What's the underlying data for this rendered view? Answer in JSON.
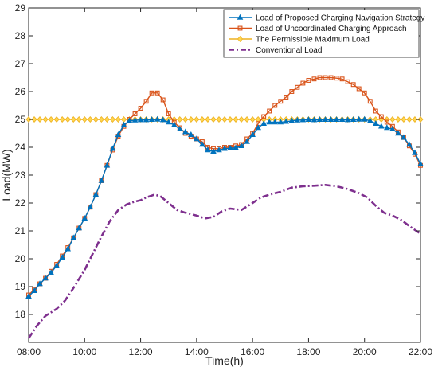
{
  "chart_data": {
    "type": "line",
    "xlabel": "Time(h)",
    "ylabel": "Load(MW)",
    "xlim": [
      8,
      22
    ],
    "ylim": [
      17,
      29
    ],
    "x_ticks": [
      {
        "value": 8,
        "label": "08:00"
      },
      {
        "value": 10,
        "label": "10:00"
      },
      {
        "value": 12,
        "label": "12:00"
      },
      {
        "value": 14,
        "label": "14:00"
      },
      {
        "value": 16,
        "label": "16:00"
      },
      {
        "value": 18,
        "label": "18:00"
      },
      {
        "value": 20,
        "label": "20:00"
      },
      {
        "value": 22,
        "label": "22:00"
      }
    ],
    "y_ticks": [
      {
        "value": 18,
        "label": "18"
      },
      {
        "value": 19,
        "label": "19"
      },
      {
        "value": 20,
        "label": "20"
      },
      {
        "value": 21,
        "label": "21"
      },
      {
        "value": 22,
        "label": "22"
      },
      {
        "value": 23,
        "label": "23"
      },
      {
        "value": 24,
        "label": "24"
      },
      {
        "value": 25,
        "label": "25"
      },
      {
        "value": 26,
        "label": "26"
      },
      {
        "value": 27,
        "label": "27"
      },
      {
        "value": 28,
        "label": "28"
      },
      {
        "value": 29,
        "label": "29"
      }
    ],
    "grid": false,
    "legend_position": "top-right",
    "series": [
      {
        "name": "Load of Proposed Charging Navigation Strategy",
        "color": "#0072BD",
        "line_style": "solid",
        "marker": "triangle",
        "points": [
          [
            8.0,
            18.65
          ],
          [
            8.2,
            18.85
          ],
          [
            8.4,
            19.1
          ],
          [
            8.6,
            19.3
          ],
          [
            8.8,
            19.5
          ],
          [
            9.0,
            19.75
          ],
          [
            9.2,
            20.05
          ],
          [
            9.4,
            20.35
          ],
          [
            9.6,
            20.75
          ],
          [
            9.8,
            21.1
          ],
          [
            10.0,
            21.45
          ],
          [
            10.2,
            21.85
          ],
          [
            10.4,
            22.3
          ],
          [
            10.6,
            22.8
          ],
          [
            10.8,
            23.35
          ],
          [
            11.0,
            23.95
          ],
          [
            11.2,
            24.45
          ],
          [
            11.4,
            24.8
          ],
          [
            11.6,
            24.95
          ],
          [
            11.8,
            24.97
          ],
          [
            12.0,
            24.98
          ],
          [
            12.2,
            24.98
          ],
          [
            12.4,
            24.99
          ],
          [
            12.6,
            25.0
          ],
          [
            12.8,
            24.98
          ],
          [
            13.0,
            24.9
          ],
          [
            13.2,
            24.8
          ],
          [
            13.4,
            24.65
          ],
          [
            13.6,
            24.55
          ],
          [
            13.8,
            24.45
          ],
          [
            14.0,
            24.3
          ],
          [
            14.2,
            24.1
          ],
          [
            14.4,
            23.9
          ],
          [
            14.6,
            23.85
          ],
          [
            14.8,
            23.9
          ],
          [
            15.0,
            23.95
          ],
          [
            15.2,
            23.97
          ],
          [
            15.4,
            23.98
          ],
          [
            15.6,
            24.05
          ],
          [
            15.8,
            24.2
          ],
          [
            16.0,
            24.45
          ],
          [
            16.2,
            24.7
          ],
          [
            16.4,
            24.85
          ],
          [
            16.6,
            24.9
          ],
          [
            16.8,
            24.9
          ],
          [
            17.0,
            24.9
          ],
          [
            17.2,
            24.92
          ],
          [
            17.4,
            24.95
          ],
          [
            17.6,
            24.97
          ],
          [
            17.8,
            24.98
          ],
          [
            18.0,
            24.99
          ],
          [
            18.2,
            24.98
          ],
          [
            18.4,
            24.99
          ],
          [
            18.6,
            24.99
          ],
          [
            18.8,
            24.99
          ],
          [
            19.0,
            24.99
          ],
          [
            19.2,
            24.99
          ],
          [
            19.4,
            24.98
          ],
          [
            19.6,
            24.99
          ],
          [
            19.8,
            25.0
          ],
          [
            20.0,
            25.0
          ],
          [
            20.2,
            24.95
          ],
          [
            20.4,
            24.85
          ],
          [
            20.6,
            24.75
          ],
          [
            20.8,
            24.7
          ],
          [
            21.0,
            24.65
          ],
          [
            21.2,
            24.5
          ],
          [
            21.4,
            24.35
          ],
          [
            21.6,
            24.1
          ],
          [
            21.8,
            23.8
          ],
          [
            22.0,
            23.4
          ]
        ]
      },
      {
        "name": "Load of Uncoordinated Charging Approach",
        "color": "#D95319",
        "line_style": "solid",
        "marker": "square",
        "points": [
          [
            8.0,
            18.7
          ],
          [
            8.2,
            18.9
          ],
          [
            8.4,
            19.1
          ],
          [
            8.6,
            19.3
          ],
          [
            8.8,
            19.55
          ],
          [
            9.0,
            19.8
          ],
          [
            9.2,
            20.1
          ],
          [
            9.4,
            20.4
          ],
          [
            9.6,
            20.75
          ],
          [
            9.8,
            21.1
          ],
          [
            10.0,
            21.45
          ],
          [
            10.2,
            21.85
          ],
          [
            10.4,
            22.3
          ],
          [
            10.6,
            22.8
          ],
          [
            10.8,
            23.35
          ],
          [
            11.0,
            23.9
          ],
          [
            11.2,
            24.4
          ],
          [
            11.4,
            24.75
          ],
          [
            11.6,
            25.0
          ],
          [
            11.8,
            25.2
          ],
          [
            12.0,
            25.4
          ],
          [
            12.2,
            25.65
          ],
          [
            12.4,
            25.95
          ],
          [
            12.6,
            25.95
          ],
          [
            12.8,
            25.7
          ],
          [
            13.0,
            25.2
          ],
          [
            13.2,
            24.9
          ],
          [
            13.4,
            24.7
          ],
          [
            13.6,
            24.5
          ],
          [
            13.8,
            24.4
          ],
          [
            14.0,
            24.3
          ],
          [
            14.2,
            24.2
          ],
          [
            14.4,
            24.0
          ],
          [
            14.6,
            23.95
          ],
          [
            14.8,
            23.95
          ],
          [
            15.0,
            24.0
          ],
          [
            15.2,
            24.0
          ],
          [
            15.4,
            24.05
          ],
          [
            15.6,
            24.1
          ],
          [
            15.8,
            24.3
          ],
          [
            16.0,
            24.5
          ],
          [
            16.2,
            24.85
          ],
          [
            16.4,
            25.1
          ],
          [
            16.6,
            25.3
          ],
          [
            16.8,
            25.5
          ],
          [
            17.0,
            25.65
          ],
          [
            17.2,
            25.8
          ],
          [
            17.4,
            26.0
          ],
          [
            17.6,
            26.15
          ],
          [
            17.8,
            26.3
          ],
          [
            18.0,
            26.4
          ],
          [
            18.2,
            26.45
          ],
          [
            18.4,
            26.5
          ],
          [
            18.6,
            26.5
          ],
          [
            18.8,
            26.5
          ],
          [
            19.0,
            26.48
          ],
          [
            19.2,
            26.45
          ],
          [
            19.4,
            26.35
          ],
          [
            19.6,
            26.25
          ],
          [
            19.8,
            26.1
          ],
          [
            20.0,
            25.95
          ],
          [
            20.2,
            25.65
          ],
          [
            20.4,
            25.3
          ],
          [
            20.6,
            25.1
          ],
          [
            20.8,
            24.9
          ],
          [
            21.0,
            24.75
          ],
          [
            21.2,
            24.55
          ],
          [
            21.4,
            24.35
          ],
          [
            21.6,
            24.05
          ],
          [
            21.8,
            23.75
          ],
          [
            22.0,
            23.35
          ]
        ]
      },
      {
        "name": "The Permissible Maximum Load",
        "color": "#EDB120",
        "line_style": "solid",
        "marker": "diamond",
        "points": [
          [
            8,
            25
          ],
          [
            8.2,
            25
          ],
          [
            8.4,
            25
          ],
          [
            8.6,
            25
          ],
          [
            8.8,
            25
          ],
          [
            9.0,
            25
          ],
          [
            9.2,
            25
          ],
          [
            9.4,
            25
          ],
          [
            9.6,
            25
          ],
          [
            9.8,
            25
          ],
          [
            10.0,
            25
          ],
          [
            10.2,
            25
          ],
          [
            10.4,
            25
          ],
          [
            10.6,
            25
          ],
          [
            10.8,
            25
          ],
          [
            11.0,
            25
          ],
          [
            11.2,
            25
          ],
          [
            11.4,
            25
          ],
          [
            11.6,
            25
          ],
          [
            11.8,
            25
          ],
          [
            12.0,
            25
          ],
          [
            12.2,
            25
          ],
          [
            12.4,
            25
          ],
          [
            12.6,
            25
          ],
          [
            12.8,
            25
          ],
          [
            13.0,
            25
          ],
          [
            13.2,
            25
          ],
          [
            13.4,
            25
          ],
          [
            13.6,
            25
          ],
          [
            13.8,
            25
          ],
          [
            14.0,
            25
          ],
          [
            14.2,
            25
          ],
          [
            14.4,
            25
          ],
          [
            14.6,
            25
          ],
          [
            14.8,
            25
          ],
          [
            15.0,
            25
          ],
          [
            15.2,
            25
          ],
          [
            15.4,
            25
          ],
          [
            15.6,
            25
          ],
          [
            15.8,
            25
          ],
          [
            16.0,
            25
          ],
          [
            16.2,
            25
          ],
          [
            16.4,
            25
          ],
          [
            16.6,
            25
          ],
          [
            16.8,
            25
          ],
          [
            17.0,
            25
          ],
          [
            17.2,
            25
          ],
          [
            17.4,
            25
          ],
          [
            17.6,
            25
          ],
          [
            17.8,
            25
          ],
          [
            18.0,
            25
          ],
          [
            18.2,
            25
          ],
          [
            18.4,
            25
          ],
          [
            18.6,
            25
          ],
          [
            18.8,
            25
          ],
          [
            19.0,
            25
          ],
          [
            19.2,
            25
          ],
          [
            19.4,
            25
          ],
          [
            19.6,
            25
          ],
          [
            19.8,
            25
          ],
          [
            20.0,
            25
          ],
          [
            20.2,
            25
          ],
          [
            20.4,
            25
          ],
          [
            20.6,
            25
          ],
          [
            20.8,
            25
          ],
          [
            21.0,
            25
          ],
          [
            21.2,
            25
          ],
          [
            21.4,
            25
          ],
          [
            21.6,
            25
          ],
          [
            21.8,
            25
          ],
          [
            22.0,
            25
          ]
        ]
      },
      {
        "name": "Conventional Load",
        "color": "#7E2F8E",
        "line_style": "dash-dot",
        "marker": "none",
        "points": [
          [
            8.0,
            17.15
          ],
          [
            8.3,
            17.6
          ],
          [
            8.6,
            17.95
          ],
          [
            9.0,
            18.2
          ],
          [
            9.3,
            18.5
          ],
          [
            9.6,
            18.95
          ],
          [
            10.0,
            19.6
          ],
          [
            10.3,
            20.2
          ],
          [
            10.6,
            20.8
          ],
          [
            10.9,
            21.35
          ],
          [
            11.2,
            21.75
          ],
          [
            11.5,
            21.95
          ],
          [
            11.8,
            22.05
          ],
          [
            12.0,
            22.1
          ],
          [
            12.2,
            22.2
          ],
          [
            12.5,
            22.3
          ],
          [
            12.7,
            22.25
          ],
          [
            13.0,
            22.0
          ],
          [
            13.3,
            21.75
          ],
          [
            13.6,
            21.65
          ],
          [
            14.0,
            21.55
          ],
          [
            14.3,
            21.45
          ],
          [
            14.6,
            21.5
          ],
          [
            14.9,
            21.7
          ],
          [
            15.2,
            21.8
          ],
          [
            15.6,
            21.75
          ],
          [
            16.0,
            22.0
          ],
          [
            16.3,
            22.2
          ],
          [
            16.6,
            22.3
          ],
          [
            17.0,
            22.4
          ],
          [
            17.4,
            22.55
          ],
          [
            17.8,
            22.6
          ],
          [
            18.2,
            22.62
          ],
          [
            18.6,
            22.65
          ],
          [
            19.0,
            22.6
          ],
          [
            19.4,
            22.5
          ],
          [
            19.8,
            22.35
          ],
          [
            20.1,
            22.2
          ],
          [
            20.4,
            21.9
          ],
          [
            20.7,
            21.65
          ],
          [
            21.0,
            21.55
          ],
          [
            21.3,
            21.4
          ],
          [
            21.7,
            21.1
          ],
          [
            22.0,
            20.9
          ]
        ]
      }
    ]
  }
}
